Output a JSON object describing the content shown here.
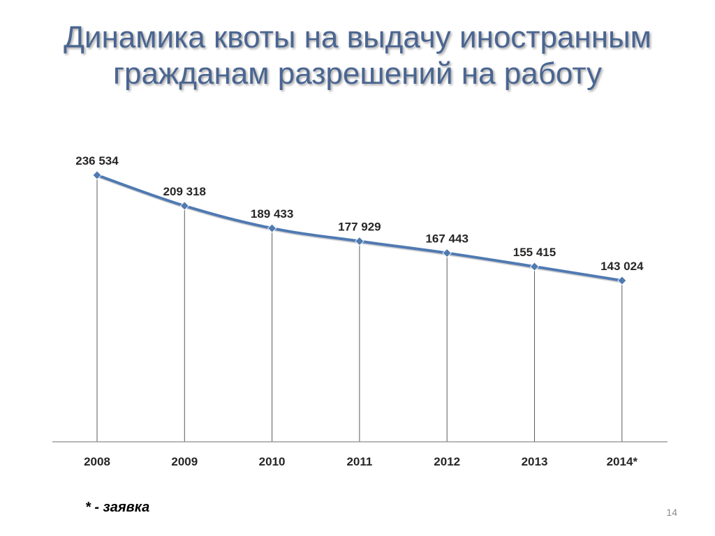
{
  "slide": {
    "title": "Динамика квоты на выдачу иностранным гражданам разрешений на работу",
    "footnote": "* - заявка",
    "page_number": "14"
  },
  "colors": {
    "title": "#4a6591",
    "series_line": "#4f7ab2",
    "marker": "#4f7ab2",
    "axis": "#8c8c8c",
    "drop_lines": "#5a5a5a"
  },
  "chart_data": {
    "type": "line",
    "title": "",
    "xlabel": "",
    "ylabel": "",
    "categories": [
      "2008",
      "2009",
      "2010",
      "2011",
      "2012",
      "2013",
      "2014*"
    ],
    "series": [
      {
        "values": [
          236534,
          209318,
          189433,
          177929,
          167443,
          155415,
          143024
        ],
        "data_labels": [
          "236 534",
          "209 318",
          "189 433",
          "177 929",
          "167 443",
          "155 415",
          "143 024"
        ]
      }
    ],
    "ylim": [
      0,
      236534
    ],
    "grid": false,
    "drop_lines": true,
    "legend": "none"
  }
}
